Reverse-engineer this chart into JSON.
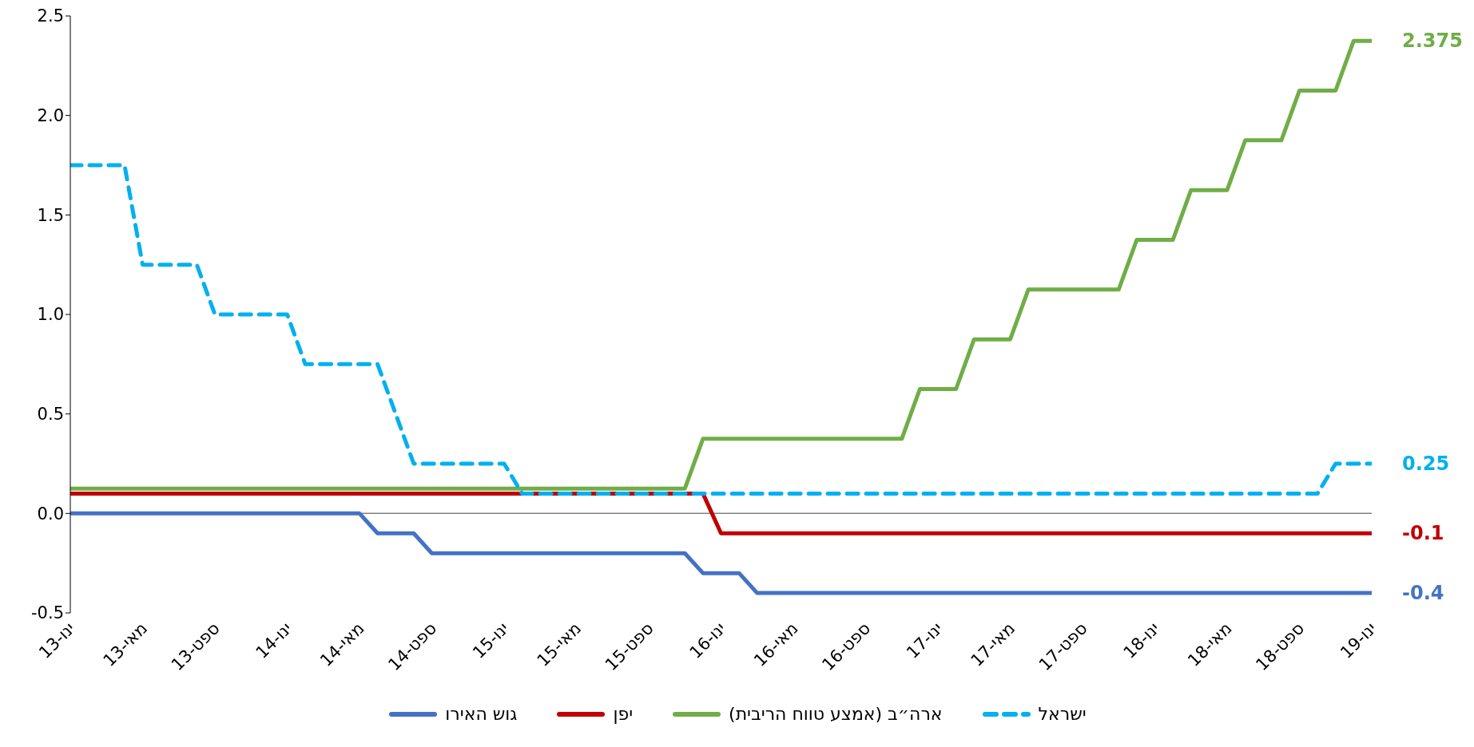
{
  "chart_data": {
    "type": "line",
    "xlim": [
      "2013-01",
      "2019-01"
    ],
    "xticks": [
      {
        "value": "2013-01",
        "label": "ינו-13"
      },
      {
        "value": "2013-05",
        "label": "מאי-13"
      },
      {
        "value": "2013-09",
        "label": "ספט-13"
      },
      {
        "value": "2014-01",
        "label": "ינו-14"
      },
      {
        "value": "2014-05",
        "label": "מאי-14"
      },
      {
        "value": "2014-09",
        "label": "ספט-14"
      },
      {
        "value": "2015-01",
        "label": "ינו-15"
      },
      {
        "value": "2015-05",
        "label": "מאי-15"
      },
      {
        "value": "2015-09",
        "label": "ספט-15"
      },
      {
        "value": "2016-01",
        "label": "ינו-16"
      },
      {
        "value": "2016-05",
        "label": "מאי-16"
      },
      {
        "value": "2016-09",
        "label": "ספט-16"
      },
      {
        "value": "2017-01",
        "label": "ינו-17"
      },
      {
        "value": "2017-05",
        "label": "מאי-17"
      },
      {
        "value": "2017-09",
        "label": "ספט-17"
      },
      {
        "value": "2018-01",
        "label": "ינו-18"
      },
      {
        "value": "2018-05",
        "label": "מאי-18"
      },
      {
        "value": "2018-09",
        "label": "ספט-18"
      },
      {
        "value": "2019-01",
        "label": "ינו-19"
      }
    ],
    "ylim": [
      -0.5,
      2.5
    ],
    "yticks": [
      -0.5,
      {
        "value": 0,
        "label": "0.0"
      },
      0.5,
      {
        "value": 1,
        "label": "1.0"
      },
      1.5,
      {
        "value": 2,
        "label": "2.0"
      },
      2.5
    ],
    "grid": false,
    "legend": "bottom",
    "marker": "none",
    "ref_lines": [
      {
        "axis": "y",
        "value": 0,
        "color": "#808080"
      }
    ],
    "series": [
      {
        "name": "גוש האירו",
        "color": "#4472c4",
        "line_style": "solid",
        "x": [
          "2013-01",
          "2014-05",
          "2014-06",
          "2014-08",
          "2014-09",
          "2015-11",
          "2015-12",
          "2016-02",
          "2016-03",
          "2019-01"
        ],
        "values": [
          0,
          0,
          -0.1,
          -0.1,
          -0.2,
          -0.2,
          -0.3,
          -0.3,
          -0.4,
          -0.4
        ],
        "value_labels": [
          null,
          null,
          null,
          null,
          null,
          null,
          null,
          null,
          null,
          "-0.4"
        ]
      },
      {
        "name": "יפן",
        "color": "#c00000",
        "line_style": "solid",
        "x": [
          "2013-01",
          "2015-12",
          "2016-01",
          "2019-01"
        ],
        "values": [
          0.1,
          0.1,
          -0.1,
          -0.1
        ],
        "value_labels": [
          null,
          null,
          null,
          "-0.1"
        ]
      },
      {
        "name": "ארה״ב (אמצע טווח הריבית)",
        "color": "#70ad47",
        "line_style": "solid",
        "x": [
          "2013-01",
          "2015-11",
          "2015-12",
          "2016-11",
          "2016-12",
          "2017-02",
          "2017-03",
          "2017-05",
          "2017-06",
          "2017-11",
          "2017-12",
          "2018-02",
          "2018-03",
          "2018-05",
          "2018-06",
          "2018-08",
          "2018-09",
          "2018-11",
          "2018-12",
          "2019-01"
        ],
        "values": [
          0.125,
          0.125,
          0.375,
          0.375,
          0.625,
          0.625,
          0.875,
          0.875,
          1.125,
          1.125,
          1.375,
          1.375,
          1.625,
          1.625,
          1.875,
          1.875,
          2.125,
          2.125,
          2.375,
          2.375
        ],
        "value_labels": [
          null,
          null,
          null,
          null,
          null,
          null,
          null,
          null,
          null,
          null,
          null,
          null,
          null,
          null,
          null,
          null,
          null,
          null,
          null,
          "2.375"
        ]
      },
      {
        "name": "ישראל",
        "color": "#00b0f0",
        "line_style": "dashed",
        "x": [
          "2013-01",
          "2013-04",
          "2013-05",
          "2013-08",
          "2013-09",
          "2014-01",
          "2014-02",
          "2014-06",
          "2014-08",
          "2015-01",
          "2015-02",
          "2018-10",
          "2018-11",
          "2019-01"
        ],
        "values": [
          1.75,
          1.75,
          1.25,
          1.25,
          1.0,
          1.0,
          0.75,
          0.75,
          0.25,
          0.25,
          0.1,
          0.1,
          0.25,
          0.25
        ],
        "value_labels": [
          null,
          null,
          null,
          null,
          null,
          null,
          null,
          null,
          null,
          null,
          null,
          null,
          null,
          "0.25"
        ]
      }
    ]
  }
}
